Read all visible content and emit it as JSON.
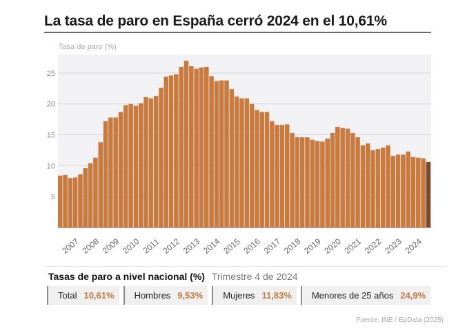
{
  "header": {
    "title": "La tasa de paro en España cerró 2024 en el 10,61%"
  },
  "chart_data": {
    "type": "bar",
    "ylabel": "Tasa de paro (%)",
    "ylim": [
      0,
      28
    ],
    "yticks": [
      5,
      10,
      15,
      20,
      25
    ],
    "xticks": [
      "2007",
      "2008",
      "2009",
      "2010",
      "2011",
      "2012",
      "2013",
      "2014",
      "2015",
      "2016",
      "2017",
      "2018",
      "2019",
      "2020",
      "2021",
      "2022",
      "2023",
      "2024"
    ],
    "values": [
      8.4,
      8.5,
      8.0,
      8.1,
      8.6,
      9.6,
      10.4,
      11.3,
      13.8,
      17.2,
      17.8,
      17.8,
      18.7,
      19.8,
      20.0,
      19.7,
      20.1,
      21.1,
      20.9,
      21.3,
      22.6,
      24.4,
      24.6,
      24.8,
      26.0,
      27.0,
      26.1,
      25.7,
      25.9,
      26.0,
      24.5,
      23.7,
      23.8,
      23.8,
      22.4,
      21.2,
      20.9,
      20.9,
      20.0,
      19.0,
      18.7,
      18.7,
      17.2,
      16.6,
      16.6,
      16.7,
      15.3,
      14.6,
      14.6,
      14.6,
      14.2,
      14.0,
      13.9,
      14.4,
      15.3,
      16.3,
      16.1,
      16.0,
      15.3,
      14.6,
      13.3,
      13.6,
      12.5,
      12.7,
      12.9,
      13.3,
      11.6,
      11.8,
      11.8,
      12.3,
      11.4,
      11.3,
      11.2,
      10.61
    ],
    "grid": true,
    "colors": {
      "bar": "#c87a3f",
      "bar_last": "#7a4a2c",
      "plot_bg": "#f2f1f4",
      "grid": "#d7d7db"
    }
  },
  "stats": {
    "label": "Tasas de paro a nivel nacional (%)",
    "period": "Trimestre 4 de 2024",
    "items": [
      {
        "name": "Total",
        "value": "10,61%"
      },
      {
        "name": "Hombres",
        "value": "9,53%"
      },
      {
        "name": "Mujeres",
        "value": "11,83%"
      },
      {
        "name": "Menores de 25 años",
        "value": "24,9%"
      }
    ]
  },
  "source": "Fuente: INE / EpData (2025)"
}
